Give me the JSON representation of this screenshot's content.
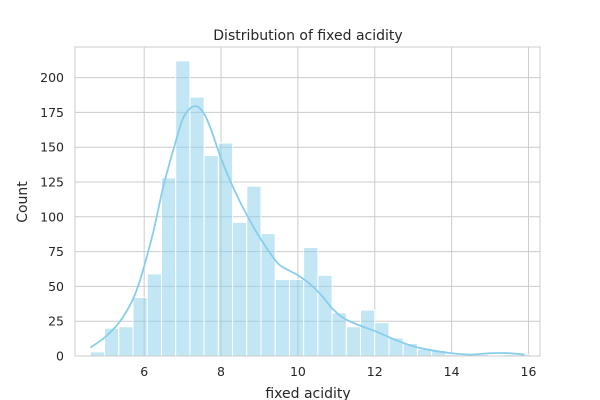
{
  "chart_data": {
    "type": "histogram",
    "title": "Distribution of fixed acidity",
    "xlabel": "fixed acidity",
    "ylabel": "Count",
    "xlim": [
      4.2,
      16.3
    ],
    "ylim": [
      0,
      222
    ],
    "xticks": [
      6,
      8,
      10,
      12,
      14,
      16
    ],
    "yticks": [
      0,
      25,
      50,
      75,
      100,
      125,
      150,
      175,
      200
    ],
    "grid": true,
    "colors": {
      "bar": "#87ceeb",
      "kde": "#87ceeb",
      "grid": "#cccccc"
    },
    "bins": [
      {
        "x0": 4.6,
        "x1": 4.97,
        "count": 3
      },
      {
        "x0": 4.97,
        "x1": 5.34,
        "count": 20
      },
      {
        "x0": 5.34,
        "x1": 5.71,
        "count": 21
      },
      {
        "x0": 5.71,
        "x1": 6.08,
        "count": 42
      },
      {
        "x0": 6.08,
        "x1": 6.45,
        "count": 59
      },
      {
        "x0": 6.45,
        "x1": 6.82,
        "count": 128
      },
      {
        "x0": 6.82,
        "x1": 7.19,
        "count": 212
      },
      {
        "x0": 7.19,
        "x1": 7.56,
        "count": 186
      },
      {
        "x0": 7.56,
        "x1": 7.93,
        "count": 144
      },
      {
        "x0": 7.93,
        "x1": 8.3,
        "count": 153
      },
      {
        "x0": 8.3,
        "x1": 8.67,
        "count": 96
      },
      {
        "x0": 8.67,
        "x1": 9.04,
        "count": 122
      },
      {
        "x0": 9.04,
        "x1": 9.41,
        "count": 88
      },
      {
        "x0": 9.41,
        "x1": 9.78,
        "count": 55
      },
      {
        "x0": 9.78,
        "x1": 10.15,
        "count": 55
      },
      {
        "x0": 10.15,
        "x1": 10.52,
        "count": 78
      },
      {
        "x0": 10.52,
        "x1": 10.89,
        "count": 58
      },
      {
        "x0": 10.89,
        "x1": 11.26,
        "count": 31
      },
      {
        "x0": 11.26,
        "x1": 11.63,
        "count": 21
      },
      {
        "x0": 11.63,
        "x1": 12.0,
        "count": 33
      },
      {
        "x0": 12.0,
        "x1": 12.37,
        "count": 24
      },
      {
        "x0": 12.37,
        "x1": 12.74,
        "count": 13
      },
      {
        "x0": 12.74,
        "x1": 13.11,
        "count": 9
      },
      {
        "x0": 13.11,
        "x1": 13.48,
        "count": 5
      },
      {
        "x0": 13.48,
        "x1": 13.85,
        "count": 4
      },
      {
        "x0": 13.85,
        "x1": 14.22,
        "count": 1
      },
      {
        "x0": 14.22,
        "x1": 14.59,
        "count": 1
      },
      {
        "x0": 14.59,
        "x1": 14.96,
        "count": 1
      },
      {
        "x0": 14.96,
        "x1": 15.33,
        "count": 0
      },
      {
        "x0": 15.33,
        "x1": 15.7,
        "count": 1
      },
      {
        "x0": 15.7,
        "x1": 16.07,
        "count": 1
      }
    ],
    "kde": {
      "x": [
        4.6,
        5.0,
        5.4,
        5.8,
        6.2,
        6.5,
        6.8,
        7.0,
        7.2,
        7.4,
        7.6,
        7.8,
        8.0,
        8.3,
        8.6,
        8.9,
        9.2,
        9.5,
        9.8,
        10.0,
        10.3,
        10.6,
        10.9,
        11.2,
        11.6,
        12.0,
        12.5,
        13.0,
        13.5,
        14.0,
        14.5,
        15.0,
        15.5,
        15.9
      ],
      "y": [
        6,
        14,
        26,
        47,
        85,
        122,
        152,
        170,
        178,
        179,
        172,
        158,
        142,
        122,
        105,
        90,
        77,
        66,
        61,
        58,
        52,
        44,
        34,
        27,
        22,
        18,
        12,
        7,
        4,
        2,
        1,
        2,
        2,
        1
      ]
    }
  }
}
